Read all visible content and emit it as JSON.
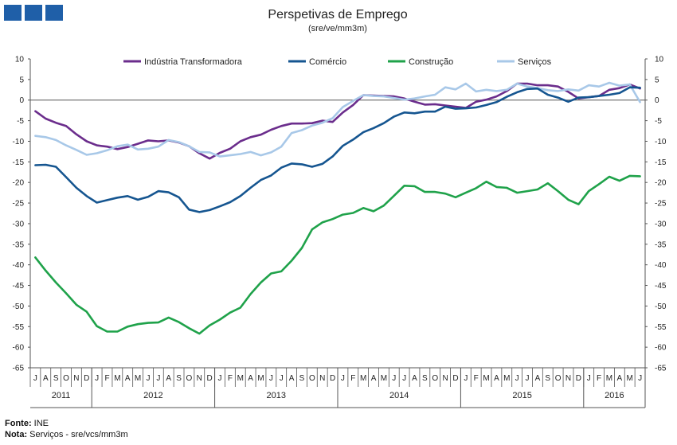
{
  "header": {
    "logo_icon": "brand-squares-icon",
    "logo_color": "#1f5fa8"
  },
  "chart_data": {
    "type": "line",
    "title": "Perspetivas de Emprego",
    "subtitle": "(sre/ve/mm3m)",
    "ylim": [
      -65,
      10
    ],
    "yticks": [
      10,
      5,
      0,
      -5,
      -10,
      -15,
      -20,
      -25,
      -30,
      -35,
      -40,
      -45,
      -50,
      -55,
      -60,
      -65
    ],
    "grid": false,
    "legend_position": "top",
    "month_labels": [
      "J",
      "A",
      "S",
      "O",
      "N",
      "D",
      "J",
      "F",
      "M",
      "A",
      "M",
      "J",
      "J",
      "A",
      "S",
      "O",
      "N",
      "D",
      "J",
      "F",
      "M",
      "A",
      "M",
      "J",
      "J",
      "A",
      "S",
      "O",
      "N",
      "D",
      "J",
      "F",
      "M",
      "A",
      "M",
      "J",
      "J",
      "A",
      "S",
      "O",
      "N",
      "D",
      "J",
      "F",
      "M",
      "A",
      "M",
      "J",
      "J",
      "A",
      "S",
      "O",
      "N",
      "D",
      "J",
      "F",
      "M",
      "A",
      "M",
      "J"
    ],
    "years": [
      {
        "label": "2011",
        "months": 6
      },
      {
        "label": "2012",
        "months": 12
      },
      {
        "label": "2013",
        "months": 12
      },
      {
        "label": "2014",
        "months": 12
      },
      {
        "label": "2015",
        "months": 12
      },
      {
        "label": "2016",
        "months": 6
      }
    ],
    "series": [
      {
        "name": "Indústria Transformadora",
        "color": "#6b2d8c",
        "values": [
          -2.7,
          -4.5,
          -5.5,
          -6.3,
          -8.3,
          -10,
          -11,
          -11.3,
          -11.9,
          -11.4,
          -10.6,
          -9.8,
          -10,
          -9.8,
          -10.3,
          -11.2,
          -12.9,
          -14.2,
          -12.8,
          -11.8,
          -10,
          -9,
          -8.4,
          -7.2,
          -6.3,
          -5.7,
          -5.7,
          -5.6,
          -5,
          -5.3,
          -3,
          -1.2,
          1.2,
          1.1,
          1,
          0.9,
          0.4,
          -0.4,
          -1.1,
          -1,
          -1.3,
          -1.6,
          -1.9,
          -0.4,
          0.1,
          0.9,
          2.2,
          4,
          4,
          3.6,
          3.6,
          3.3,
          2,
          0.4,
          0.7,
          1,
          2.5,
          2.9,
          3.8,
          2.8
        ]
      },
      {
        "name": "Comércio",
        "color": "#155590",
        "values": [
          -15.8,
          -15.7,
          -16.2,
          -18.7,
          -21.3,
          -23.3,
          -24.9,
          -24.3,
          -23.7,
          -23.3,
          -24.2,
          -23.5,
          -22.1,
          -22.4,
          -23.6,
          -26.6,
          -27.2,
          -26.7,
          -25.8,
          -24.8,
          -23.3,
          -21.3,
          -19.4,
          -18.3,
          -16.4,
          -15.4,
          -15.6,
          -16.2,
          -15.5,
          -13.7,
          -11.1,
          -9.6,
          -7.8,
          -6.8,
          -5.6,
          -4,
          -3,
          -3.2,
          -2.8,
          -2.8,
          -1.6,
          -2.1,
          -2,
          -1.8,
          -1.2,
          -0.5,
          0.8,
          1.9,
          2.7,
          2.8,
          1.3,
          0.6,
          -0.4,
          0.6,
          0.7,
          1,
          1.3,
          1.7,
          3.1,
          3
        ]
      },
      {
        "name": "Construção",
        "color": "#1fa24a",
        "values": [
          -38.2,
          -41.4,
          -44.3,
          -46.9,
          -49.7,
          -51.4,
          -54.9,
          -56.2,
          -56.2,
          -55,
          -54.4,
          -54.1,
          -54,
          -52.8,
          -53.9,
          -55.4,
          -56.7,
          -54.7,
          -53.3,
          -51.6,
          -50.4,
          -47.1,
          -44.3,
          -42.1,
          -41.6,
          -39,
          -35.9,
          -31.4,
          -29.7,
          -28.9,
          -27.8,
          -27.4,
          -26.2,
          -27,
          -25.6,
          -23.2,
          -20.8,
          -20.9,
          -22.3,
          -22.3,
          -22.7,
          -23.6,
          -22.5,
          -21.4,
          -19.8,
          -21.1,
          -21.3,
          -22.5,
          -22.1,
          -21.7,
          -20.2,
          -22.1,
          -24.2,
          -25.3,
          -22.1,
          -20.4,
          -18.6,
          -19.6,
          -18.4,
          -18.5
        ]
      },
      {
        "name": "Serviços",
        "color": "#a8c8e8",
        "values": [
          -8.7,
          -9,
          -9.7,
          -11,
          -12.1,
          -13.3,
          -12.9,
          -12.2,
          -11.2,
          -10.8,
          -12,
          -11.8,
          -11.3,
          -9.7,
          -10.2,
          -11.2,
          -12.6,
          -12.7,
          -13.7,
          -13.4,
          -13.1,
          -12.6,
          -13.4,
          -12.7,
          -11.3,
          -8,
          -7.3,
          -6.2,
          -5.5,
          -4.4,
          -1.7,
          -0.2,
          1.2,
          1,
          0.9,
          0.5,
          0.1,
          0.4,
          0.9,
          1.3,
          3.1,
          2.6,
          4,
          2.1,
          2.5,
          2.2,
          2.5,
          4,
          3.3,
          2.9,
          2.4,
          2.2,
          2.6,
          2.3,
          3.6,
          3.3,
          4.2,
          3.5,
          3.8,
          -0.5
        ]
      }
    ]
  },
  "notes": {
    "source_label": "Fonte:",
    "source_value": "INE",
    "note_label": "Nota:",
    "note_value": "Serviços - sre/vcs/mm3m"
  }
}
